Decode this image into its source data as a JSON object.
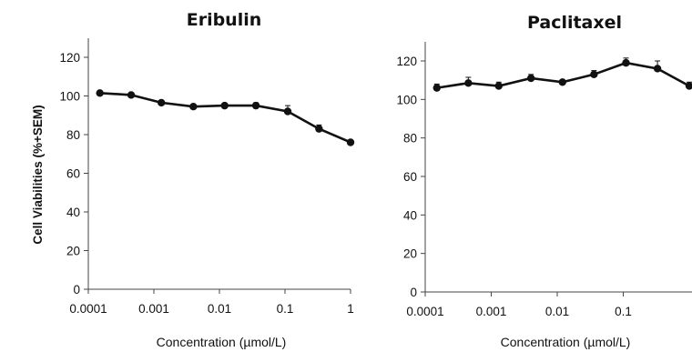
{
  "chart_data": [
    {
      "type": "line",
      "title": "Eribulin",
      "xlabel": "Concentration (µmol/L)",
      "ylabel": "Cell Viabilities (%+SEM)",
      "xscale": "log",
      "xlim": [
        0.0001,
        1
      ],
      "ylim": [
        0,
        120
      ],
      "x_ticks": [
        "0.0001",
        "0.001",
        "0.01",
        "0.1",
        "1"
      ],
      "y_ticks": [
        "0",
        "20",
        "40",
        "60",
        "80",
        "100",
        "120"
      ],
      "x": [
        0.00015,
        0.00045,
        0.0013,
        0.004,
        0.012,
        0.036,
        0.11,
        0.33,
        1.0
      ],
      "y": [
        101.5,
        100.5,
        96.5,
        94.5,
        95,
        95,
        92,
        83,
        76
      ],
      "error": [
        1,
        1,
        1,
        1,
        1,
        1.5,
        3,
        2,
        1
      ],
      "grid": false,
      "legend": "none"
    },
    {
      "type": "line",
      "title": "Paclitaxel",
      "xlabel": "Concentration (µmol/L)",
      "xscale": "log",
      "xlim": [
        0.0001,
        1
      ],
      "ylim": [
        0,
        120
      ],
      "x_ticks": [
        "0.0001",
        "0.001",
        "0.01",
        "0.1"
      ],
      "y_ticks": [
        "0",
        "20",
        "40",
        "60",
        "80",
        "100",
        "120"
      ],
      "x": [
        0.00015,
        0.00045,
        0.0013,
        0.004,
        0.012,
        0.036,
        0.11,
        0.33,
        1.0
      ],
      "y": [
        106,
        108.5,
        107,
        111,
        109,
        113,
        119,
        116,
        107
      ],
      "error": [
        2,
        3,
        2,
        2,
        1,
        2,
        2.5,
        4,
        2
      ],
      "grid": false,
      "legend": "none"
    }
  ]
}
